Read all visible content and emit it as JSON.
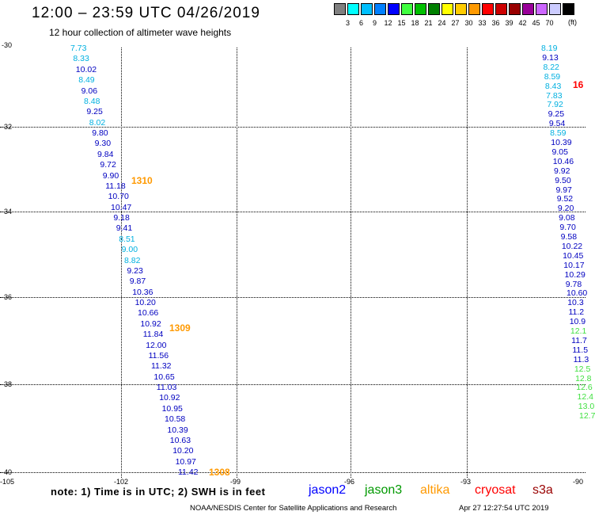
{
  "header": {
    "title": "12:00 – 23:59 UTC 04/26/2019",
    "subtitle": "12 hour collection of altimeter wave heights"
  },
  "color_scale": {
    "unit": "(ft)",
    "swatches": [
      {
        "color": "#808080",
        "label": ""
      },
      {
        "color": "#00ffff",
        "label": "3"
      },
      {
        "color": "#00c0ff",
        "label": "6"
      },
      {
        "color": "#0080ff",
        "label": "9"
      },
      {
        "color": "#0000ff",
        "label": "12"
      },
      {
        "color": "#40ff40",
        "label": "15"
      },
      {
        "color": "#00c000",
        "label": "18"
      },
      {
        "color": "#008000",
        "label": "21"
      },
      {
        "color": "#ffff00",
        "label": "24"
      },
      {
        "color": "#ffcc00",
        "label": "27"
      },
      {
        "color": "#ff9900",
        "label": "30"
      },
      {
        "color": "#ff0000",
        "label": "33"
      },
      {
        "color": "#cc0000",
        "label": "36"
      },
      {
        "color": "#990000",
        "label": "39"
      },
      {
        "color": "#990099",
        "label": "42"
      },
      {
        "color": "#cc66ff",
        "label": "45"
      },
      {
        "color": "#ccccff",
        "label": "70"
      },
      {
        "color": "#000000",
        "label": ""
      }
    ]
  },
  "axes": {
    "lat_labels": [
      "-30",
      "-32",
      "-34",
      "-36",
      "-38",
      "-40"
    ],
    "lon_labels": [
      "-105",
      "-102",
      "-99",
      "-96",
      "-93",
      "-90"
    ]
  },
  "tracks": {
    "left": [
      {
        "v": "7.73",
        "c": "#00b0e0"
      },
      {
        "v": "8.33",
        "c": "#00b0e0"
      },
      {
        "v": "10.02",
        "c": "#0000c0"
      },
      {
        "v": "8.49",
        "c": "#00b0e0"
      },
      {
        "v": "9.06",
        "c": "#0000c0"
      },
      {
        "v": "8.48",
        "c": "#00b0e0"
      },
      {
        "v": "9.25",
        "c": "#0000c0"
      },
      {
        "v": "8.02",
        "c": "#00b0e0"
      },
      {
        "v": "9.80",
        "c": "#0000c0"
      },
      {
        "v": "9.30",
        "c": "#0000c0"
      },
      {
        "v": "9.84",
        "c": "#0000c0"
      },
      {
        "v": "9.72",
        "c": "#0000c0"
      },
      {
        "v": "9.90",
        "c": "#0000c0"
      },
      {
        "v": "11.18",
        "c": "#0000c0"
      },
      {
        "v": "10.70",
        "c": "#0000c0"
      },
      {
        "v": "10.47",
        "c": "#0000c0"
      },
      {
        "v": "9.18",
        "c": "#0000c0"
      },
      {
        "v": "9.41",
        "c": "#0000c0"
      },
      {
        "v": "8.51",
        "c": "#00b0e0"
      },
      {
        "v": "9.00",
        "c": "#00b0e0"
      },
      {
        "v": "8.82",
        "c": "#00b0e0"
      },
      {
        "v": "9.23",
        "c": "#0000c0"
      },
      {
        "v": "9.87",
        "c": "#0000c0"
      },
      {
        "v": "10.36",
        "c": "#0000c0"
      },
      {
        "v": "10.20",
        "c": "#0000c0"
      },
      {
        "v": "10.66",
        "c": "#0000c0"
      },
      {
        "v": "10.92",
        "c": "#0000c0"
      },
      {
        "v": "11.84",
        "c": "#0000c0"
      },
      {
        "v": "12.00",
        "c": "#0000c0"
      },
      {
        "v": "11.56",
        "c": "#0000c0"
      },
      {
        "v": "11.32",
        "c": "#0000c0"
      },
      {
        "v": "10.65",
        "c": "#0000c0"
      },
      {
        "v": "11.03",
        "c": "#0000c0"
      },
      {
        "v": "10.92",
        "c": "#0000c0"
      },
      {
        "v": "10.95",
        "c": "#0000c0"
      },
      {
        "v": "10.58",
        "c": "#0000c0"
      },
      {
        "v": "10.39",
        "c": "#0000c0"
      },
      {
        "v": "10.63",
        "c": "#0000c0"
      },
      {
        "v": "10.20",
        "c": "#0000c0"
      },
      {
        "v": "10.97",
        "c": "#0000c0"
      },
      {
        "v": "11.42",
        "c": "#0000c0"
      }
    ],
    "right": [
      {
        "v": "8.19",
        "c": "#00b0e0"
      },
      {
        "v": "9.13",
        "c": "#0000c0"
      },
      {
        "v": "8.22",
        "c": "#00b0e0"
      },
      {
        "v": "8.59",
        "c": "#00b0e0"
      },
      {
        "v": "8.43",
        "c": "#00b0e0"
      },
      {
        "v": "7.83",
        "c": "#00b0e0"
      },
      {
        "v": "7.92",
        "c": "#00b0e0"
      },
      {
        "v": "9.25",
        "c": "#0000c0"
      },
      {
        "v": "9.54",
        "c": "#0000c0"
      },
      {
        "v": "8.59",
        "c": "#00b0e0"
      },
      {
        "v": "10.39",
        "c": "#0000c0"
      },
      {
        "v": "9.05",
        "c": "#0000c0"
      },
      {
        "v": "10.46",
        "c": "#0000c0"
      },
      {
        "v": "9.92",
        "c": "#0000c0"
      },
      {
        "v": "9.50",
        "c": "#0000c0"
      },
      {
        "v": "9.97",
        "c": "#0000c0"
      },
      {
        "v": "9.52",
        "c": "#0000c0"
      },
      {
        "v": "9.20",
        "c": "#0000c0"
      },
      {
        "v": "9.08",
        "c": "#0000c0"
      },
      {
        "v": "9.70",
        "c": "#0000c0"
      },
      {
        "v": "9.58",
        "c": "#0000c0"
      },
      {
        "v": "10.22",
        "c": "#0000c0"
      },
      {
        "v": "10.45",
        "c": "#0000c0"
      },
      {
        "v": "10.17",
        "c": "#0000c0"
      },
      {
        "v": "10.29",
        "c": "#0000c0"
      },
      {
        "v": "9.78",
        "c": "#0000c0"
      },
      {
        "v": "10.60",
        "c": "#0000c0"
      },
      {
        "v": "10.3",
        "c": "#0000c0"
      },
      {
        "v": "11.2",
        "c": "#0000c0"
      },
      {
        "v": "10.9",
        "c": "#0000c0"
      },
      {
        "v": "12.1",
        "c": "#40e040"
      },
      {
        "v": "11.7",
        "c": "#0000c0"
      },
      {
        "v": "11.5",
        "c": "#0000c0"
      },
      {
        "v": "11.3",
        "c": "#0000c0"
      },
      {
        "v": "12.5",
        "c": "#40e040"
      },
      {
        "v": "12.8",
        "c": "#40e040"
      },
      {
        "v": "12.6",
        "c": "#40e040"
      },
      {
        "v": "12.4",
        "c": "#40e040"
      },
      {
        "v": "13.0",
        "c": "#40e040"
      },
      {
        "v": "12.7",
        "c": "#40e040"
      }
    ]
  },
  "time_labels": [
    {
      "text": "1310",
      "color": "#ff9900"
    },
    {
      "text": "1309",
      "color": "#ff9900"
    },
    {
      "text": "1308",
      "color": "#ff9900"
    },
    {
      "text": "16",
      "color": "#ff0000"
    }
  ],
  "note": "note:  1) Time is in UTC;  2) SWH is in feet",
  "legend": [
    {
      "name": "jason2",
      "color": "#0000ff"
    },
    {
      "name": "jason3",
      "color": "#009900"
    },
    {
      "name": "altika",
      "color": "#ff9900"
    },
    {
      "name": "cryosat",
      "color": "#ff0000"
    },
    {
      "name": "s3a",
      "color": "#990000"
    }
  ],
  "footer": {
    "credit": "NOAA/NESDIS Center for Satellite Applications and Research",
    "timestamp": "Apr 27 12:27:54 UTC 2019"
  }
}
